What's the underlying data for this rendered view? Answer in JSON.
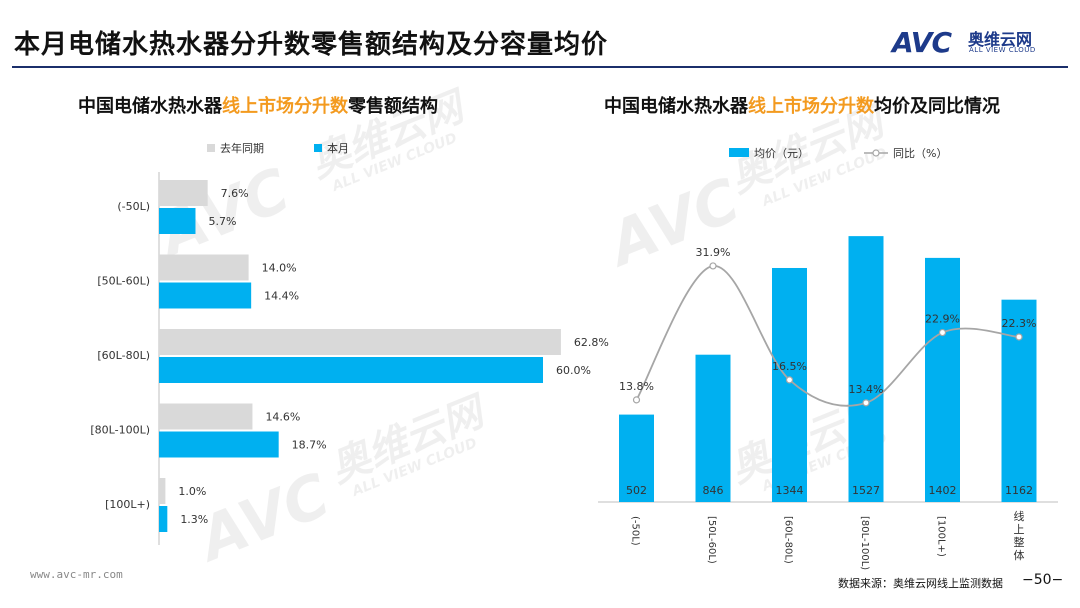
{
  "header": {
    "title": "本月电储水热水器分升数零售额结构及分容量均价",
    "logo_mark": "AVC",
    "logo_cn": "奥维云网",
    "logo_en": "ALL VIEW CLOUD"
  },
  "watermark": {
    "mark": "AVC",
    "cn": "奥维云网",
    "en": "ALL VIEW CLOUD"
  },
  "left_panel": {
    "title_prefix": "中国电储水热水器",
    "title_highlight": "线上市场分升数",
    "title_suffix": "零售额结构"
  },
  "right_panel": {
    "title_prefix": "中国电储水热水器",
    "title_highlight": "线上市场分升数",
    "title_suffix": "均价及同比情况"
  },
  "chart_data": [
    {
      "type": "bar",
      "orientation": "horizontal",
      "categories": [
        "(-50L)",
        "[50L-60L)",
        "[60L-80L)",
        "[80L-100L)",
        "[100L+)"
      ],
      "series": [
        {
          "name": "去年同期",
          "values": [
            7.6,
            14.0,
            62.8,
            14.6,
            1.0
          ],
          "labels": [
            "7.6%",
            "14.0%",
            "62.8%",
            "14.6%",
            "1.0%"
          ],
          "color": "#d9d9d9"
        },
        {
          "name": "本月",
          "values": [
            5.7,
            14.4,
            60.0,
            18.7,
            1.3
          ],
          "labels": [
            "5.7%",
            "14.4%",
            "60.0%",
            "18.7%",
            "1.3%"
          ],
          "color": "#00b0f0"
        }
      ],
      "xlim": [
        0,
        70
      ],
      "legend_position": "top"
    },
    {
      "type": "bar+line",
      "categories": [
        "(-50L)",
        "[50L-60L)",
        "[60L-80L)",
        "[80L-100L)",
        "[100L+)",
        "线上整体"
      ],
      "bar_series": {
        "name": "均价（元）",
        "values": [
          502,
          846,
          1344,
          1527,
          1402,
          1162
        ],
        "labels": [
          "502",
          "846",
          "1344",
          "1527",
          "1402",
          "1162"
        ],
        "color": "#00b0f0"
      },
      "line_series": {
        "name": "同比（%）",
        "values": [
          13.8,
          31.9,
          16.5,
          13.4,
          22.9,
          22.3
        ],
        "labels": [
          "13.8%",
          "31.9%",
          "16.5%",
          "13.4%",
          "22.9%",
          "22.3%"
        ],
        "color": "#a6a6a6"
      },
      "bar_ylim": [
        0,
        1700
      ],
      "line_ylim": [
        0,
        40
      ],
      "legend_position": "top"
    }
  ],
  "footer": {
    "website": "www.avc-mr.com",
    "source": "数据来源：奥维云网线上监测数据",
    "page": "−50−"
  }
}
